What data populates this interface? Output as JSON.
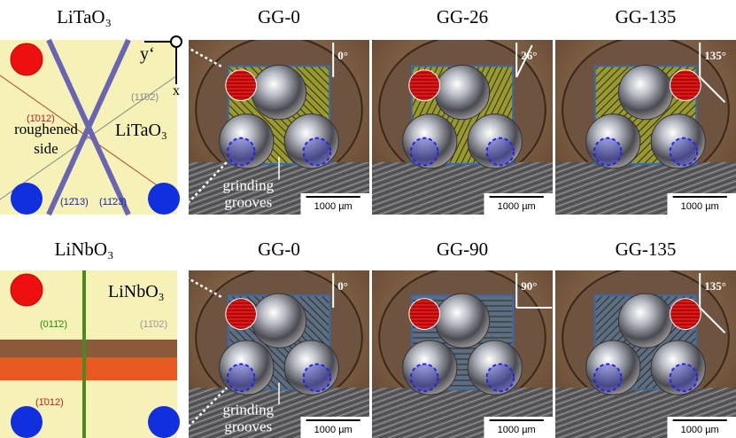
{
  "rows": [
    {
      "material": {
        "title": "LiTaO₃",
        "schematic": {
          "axis_y": "y‘",
          "axis_x": "x",
          "plane_left": "(1̄012)",
          "plane_right": "(11̄02)",
          "side_label": [
            "roughened",
            "side"
          ],
          "crystal_label": "LiTaO₃",
          "plane_bottom_a": "(12̄13)",
          "plane_bottom_b": "(11̄23)"
        }
      },
      "panels": [
        {
          "title": "GG-0",
          "angle": "0°",
          "annotation": [
            "grinding",
            "grooves"
          ],
          "scale_bar": "1000 µm"
        },
        {
          "title": "GG-26",
          "angle": "26°",
          "scale_bar": "1000 µm"
        },
        {
          "title": "GG-135",
          "angle": "135°",
          "scale_bar": "1000 µm"
        }
      ]
    },
    {
      "material": {
        "title": "LiNbO₃",
        "schematic": {
          "crystal_label": "LiNbO₃",
          "plane_green": "(011̄2)",
          "plane_right": "(11̄02)",
          "plane_bottom": "(1̄012)"
        }
      },
      "panels": [
        {
          "title": "GG-0",
          "angle": "0°",
          "annotation": [
            "grinding",
            "grooves"
          ],
          "scale_bar": "1000 µm"
        },
        {
          "title": "GG-90",
          "angle": "90°",
          "scale_bar": "1000 µm"
        },
        {
          "title": "GG-135",
          "angle": "135°",
          "scale_bar": "1000 µm"
        }
      ]
    }
  ]
}
